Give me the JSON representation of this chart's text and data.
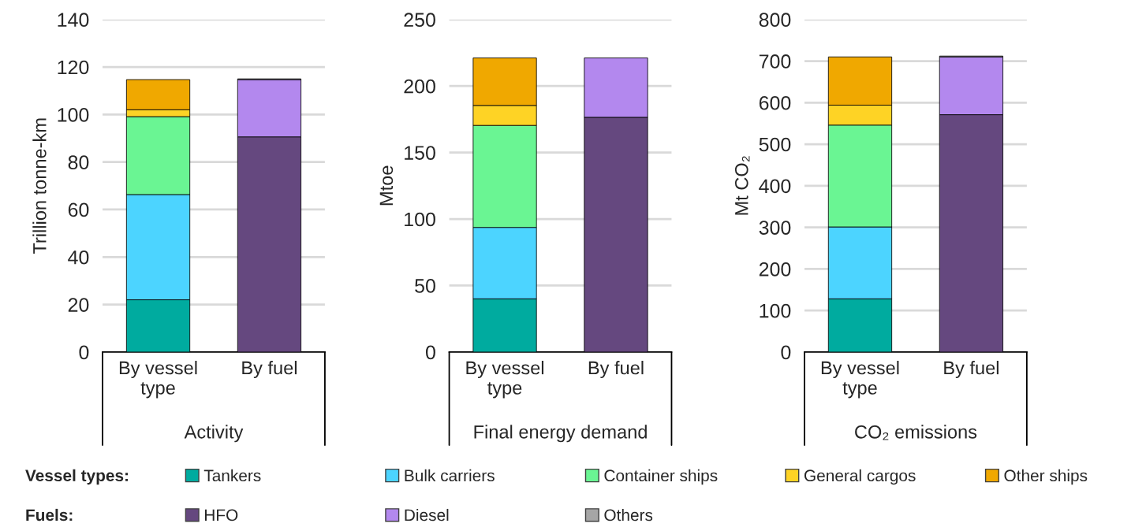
{
  "chart_data": [
    {
      "type": "bar",
      "stacked": true,
      "categories": [
        "By vessel\ntype",
        "By fuel"
      ],
      "xlabel": "Activity",
      "ylabel": "Trillion tonne-km",
      "ylim": [
        0,
        140
      ],
      "yticks": [
        0,
        20,
        40,
        60,
        80,
        100,
        120,
        140
      ],
      "grid": "y",
      "legend": "bottom",
      "annotations": [
        "Vessel types:",
        "Fuels:"
      ],
      "series": [
        {
          "name": "Tankers",
          "color": "#00ab9f",
          "values": [
            22,
            null
          ]
        },
        {
          "name": "Bulk carriers",
          "color": "#4cd4ff",
          "values": [
            44.3,
            null
          ]
        },
        {
          "name": "Container ships",
          "color": "#6af593",
          "values": [
            32.8,
            null
          ]
        },
        {
          "name": "General cargos",
          "color": "#fed325",
          "values": [
            2.9,
            null
          ]
        },
        {
          "name": "Other ships",
          "color": "#f0a800",
          "values": [
            12.7,
            null
          ]
        },
        {
          "name": "HFO",
          "color": "#65487f",
          "values": [
            null,
            90.6
          ]
        },
        {
          "name": "Diesel",
          "color": "#b388ee",
          "values": [
            null,
            24.1
          ]
        },
        {
          "name": "Others",
          "color": "#a6a6a6",
          "values": [
            null,
            0.3
          ]
        }
      ]
    },
    {
      "type": "bar",
      "stacked": true,
      "categories": [
        "By vessel\ntype",
        "By fuel"
      ],
      "xlabel": "Final energy demand",
      "ylabel": "Mtoe",
      "ylim": [
        0,
        250
      ],
      "yticks": [
        0,
        50,
        100,
        150,
        200,
        250
      ],
      "grid": "y",
      "series": [
        {
          "color": "#00ab9f",
          "values": [
            40,
            null
          ]
        },
        {
          "color": "#4cd4ff",
          "values": [
            53.7,
            null
          ]
        },
        {
          "color": "#6af593",
          "values": [
            76.7,
            null
          ]
        },
        {
          "color": "#fed325",
          "values": [
            15,
            null
          ]
        },
        {
          "color": "#f0a800",
          "values": [
            35.7,
            null
          ]
        },
        {
          "color": "#65487f",
          "values": [
            null,
            176.5
          ]
        },
        {
          "color": "#b388ee",
          "values": [
            null,
            44.6
          ]
        },
        {
          "color": "#a6a6a6",
          "values": [
            null,
            null
          ]
        }
      ]
    },
    {
      "type": "bar",
      "stacked": true,
      "categories": [
        "By vessel\ntype",
        "By fuel"
      ],
      "xlabel": "CO₂ emissions",
      "ylabel": "Mt CO₂",
      "ylim": [
        0,
        800
      ],
      "yticks": [
        0,
        100,
        200,
        300,
        400,
        500,
        600,
        700,
        800
      ],
      "grid": "y",
      "series": [
        {
          "color": "#00ab9f",
          "values": [
            128,
            null
          ]
        },
        {
          "color": "#4cd4ff",
          "values": [
            173,
            null
          ]
        },
        {
          "color": "#6af593",
          "values": [
            245,
            null
          ]
        },
        {
          "color": "#fed325",
          "values": [
            48,
            null
          ]
        },
        {
          "color": "#f0a800",
          "values": [
            116,
            null
          ]
        },
        {
          "color": "#65487f",
          "values": [
            null,
            571
          ]
        },
        {
          "color": "#b388ee",
          "values": [
            null,
            139
          ]
        },
        {
          "color": "#a6a6a6",
          "values": [
            null,
            2
          ]
        }
      ]
    }
  ]
}
